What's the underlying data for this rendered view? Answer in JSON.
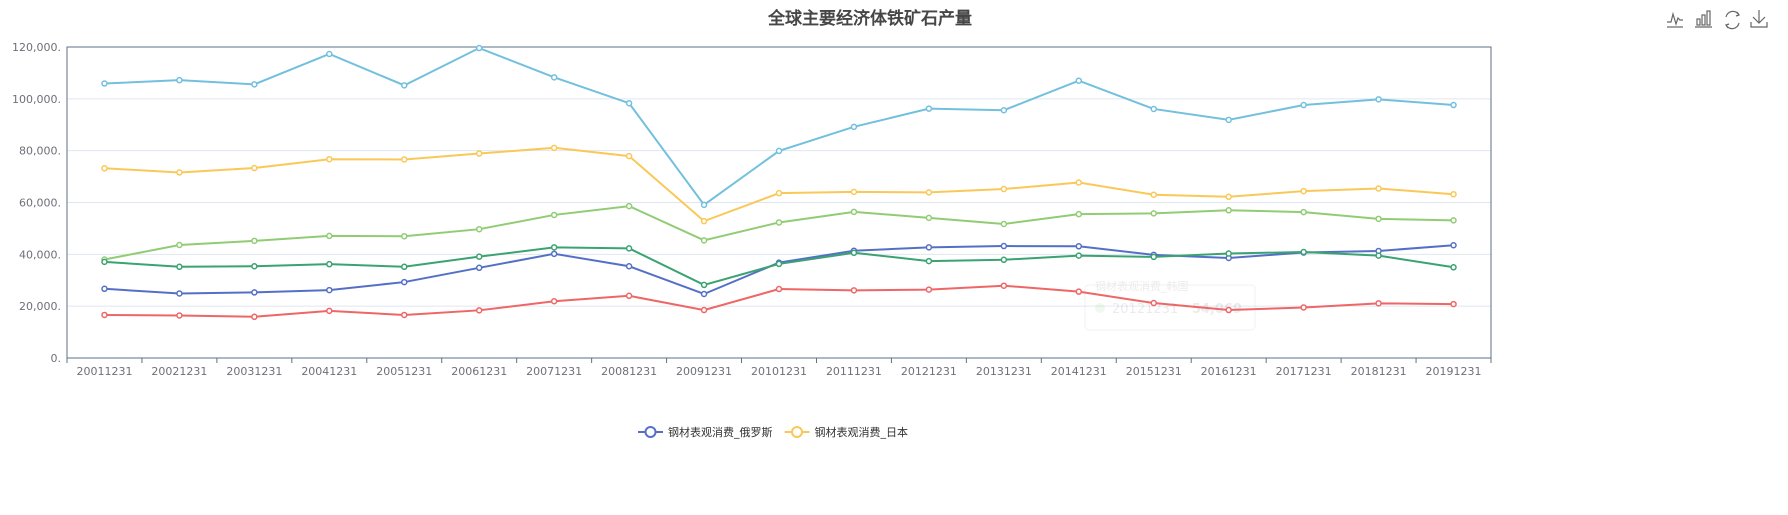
{
  "toolbox": {
    "icons": [
      "line-chart-icon",
      "bar-chart-icon",
      "refresh-icon",
      "download-icon"
    ]
  },
  "tooltip": {
    "series_name": "钢材表观消费_韩国",
    "category": "20121231",
    "value": "54,069"
  },
  "chart_data": {
    "type": "line",
    "title": "全球主要经济体铁矿石产量",
    "xlabel": "",
    "ylabel": "",
    "ylim": [
      0,
      120000
    ],
    "yticks": [
      0,
      20000,
      40000,
      60000,
      80000,
      100000,
      120000
    ],
    "ytick_labels": [
      "0.",
      "20,000.",
      "40,000.",
      "60,000.",
      "80,000.",
      "100,000.",
      "120,000."
    ],
    "grid": true,
    "legend_position": "bottom-center",
    "categories": [
      "20011231",
      "20021231",
      "20031231",
      "20041231",
      "20051231",
      "20061231",
      "20071231",
      "20081231",
      "20091231",
      "20101231",
      "20111231",
      "20121231",
      "20131231",
      "20141231",
      "20151231",
      "20161231",
      "20171231",
      "20181231",
      "20191231"
    ],
    "series": [
      {
        "name": "钢材表观消费_俄罗斯",
        "color": "#5470c6",
        "in_legend": true,
        "values": [
          26700,
          24900,
          25300,
          26200,
          29300,
          34800,
          40200,
          35400,
          24700,
          36800,
          41400,
          42700,
          43200,
          43100,
          39800,
          38600,
          40700,
          41300,
          43500
        ]
      },
      {
        "name": "钢材表观消费_日本",
        "color": "#fac858",
        "in_legend": true,
        "values": [
          73200,
          71600,
          73300,
          76700,
          76600,
          78900,
          81100,
          77900,
          52800,
          63600,
          64100,
          63900,
          65200,
          67700,
          63000,
          62200,
          64400,
          65400,
          63200
        ]
      },
      {
        "name": "钢材表观消费_韩国",
        "color": "#91cc75",
        "in_legend": false,
        "values": [
          38000,
          43600,
          45200,
          47100,
          47000,
          49700,
          55200,
          58600,
          45400,
          52300,
          56400,
          54069,
          51700,
          55500,
          55800,
          57000,
          56300,
          53700,
          53100
        ]
      },
      {
        "name": "",
        "color": "#ee6666",
        "in_legend": false,
        "values": [
          16600,
          16400,
          15900,
          18200,
          16600,
          18400,
          21900,
          24000,
          18500,
          26600,
          26100,
          26400,
          27900,
          25600,
          21200,
          18500,
          19500,
          21100,
          20800
        ]
      },
      {
        "name": "",
        "color": "#73c0de",
        "in_legend": false,
        "values": [
          105900,
          107200,
          105600,
          117300,
          105200,
          119600,
          108300,
          98300,
          59100,
          79900,
          89200,
          96200,
          95600,
          107000,
          96100,
          91900,
          97600,
          99800,
          97600
        ]
      },
      {
        "name": "",
        "color": "#3ba272",
        "in_legend": false,
        "values": [
          37100,
          35200,
          35400,
          36200,
          35200,
          39100,
          42700,
          42300,
          28200,
          36300,
          40600,
          37400,
          37900,
          39500,
          39000,
          40300,
          40900,
          39500,
          35000
        ]
      }
    ]
  }
}
